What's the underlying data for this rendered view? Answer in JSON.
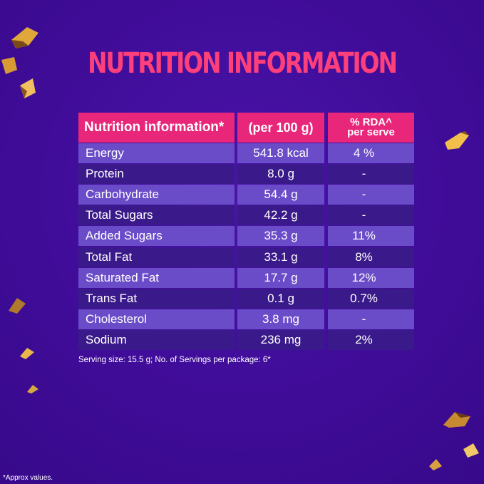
{
  "title": "NUTRITION INFORMATION",
  "table": {
    "headers": {
      "name": "Nutrition information*",
      "per100": "(per 100 g)",
      "rda_line1": "% RDA^",
      "rda_line2": "per serve"
    },
    "rows": [
      {
        "name": "Energy",
        "per100": "541.8 kcal",
        "rda": "4 %"
      },
      {
        "name": "Protein",
        "per100": "8.0 g",
        "rda": "-"
      },
      {
        "name": "Carbohydrate",
        "per100": "54.4 g",
        "rda": "-"
      },
      {
        "name": "Total Sugars",
        "per100": "42.2 g",
        "rda": "-"
      },
      {
        "name": "Added Sugars",
        "per100": "35.3 g",
        "rda": "11%"
      },
      {
        "name": "Total Fat",
        "per100": "33.1 g",
        "rda": "8%"
      },
      {
        "name": "Saturated Fat",
        "per100": "17.7 g",
        "rda": "12%"
      },
      {
        "name": "Trans Fat",
        "per100": "0.1 g",
        "rda": "0.7%"
      },
      {
        "name": "Cholesterol",
        "per100": "3.8 mg",
        "rda": "-"
      },
      {
        "name": "Sodium",
        "per100": "236 mg",
        "rda": "2%"
      }
    ]
  },
  "serving_note": "Serving size: 15.5 g; No. of Servings per package: 6*",
  "footnote": "*Approx values.",
  "colors": {
    "background": "#3f0c98",
    "title": "#ff3f7a",
    "header": "#e8267a",
    "row_light": "#6a4cc8",
    "row_dark": "#3a1a8a"
  }
}
